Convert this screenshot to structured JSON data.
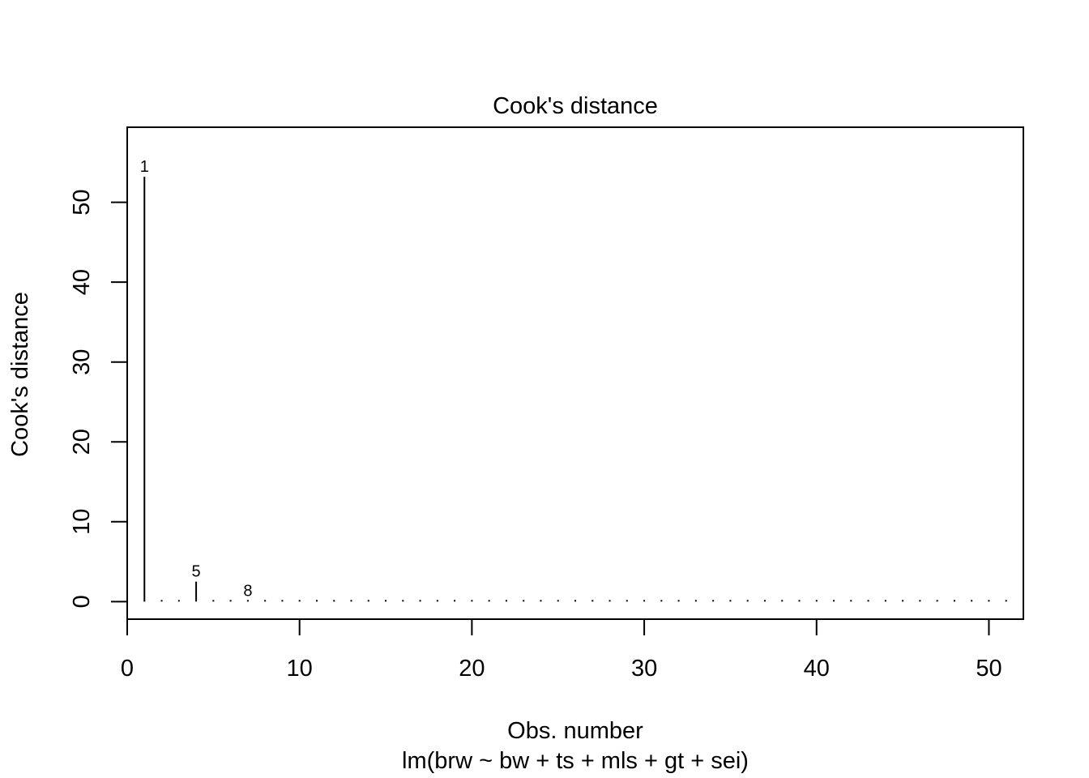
{
  "chart_data": {
    "type": "bar",
    "title": "Cook's distance",
    "xlabel": "Obs. number",
    "subtitle": "lm(brw ~ bw + ts + mls + gt + sei)",
    "ylabel": "Cook's distance",
    "xlim": [
      0,
      52
    ],
    "ylim": [
      -2.2,
      59.4
    ],
    "xticks": [
      0,
      10,
      20,
      30,
      40,
      50
    ],
    "yticks": [
      0,
      10,
      20,
      30,
      40,
      50
    ],
    "grid": false,
    "x": [
      1,
      2,
      3,
      4,
      5,
      6,
      7,
      8,
      9,
      10,
      11,
      12,
      13,
      14,
      15,
      16,
      17,
      18,
      19,
      20,
      21,
      22,
      23,
      24,
      25,
      26,
      27,
      28,
      29,
      30,
      31,
      32,
      33,
      34,
      35,
      36,
      37,
      38,
      39,
      40,
      41,
      42,
      43,
      44,
      45,
      46,
      47,
      48,
      49,
      50,
      51
    ],
    "values": [
      53.2,
      0.02,
      0.03,
      2.5,
      0.03,
      0.05,
      0.1,
      0.03,
      0.02,
      0.02,
      0.02,
      0.03,
      0.02,
      0.06,
      0.02,
      0.02,
      0.02,
      0.02,
      0.03,
      0.02,
      0.02,
      0.02,
      0.02,
      0.02,
      0.02,
      0.02,
      0.02,
      0.02,
      0.02,
      0.02,
      0.02,
      0.02,
      0.02,
      0.02,
      0.02,
      0.02,
      0.02,
      0.02,
      0.02,
      0.02,
      0.02,
      0.02,
      0.02,
      0.02,
      0.02,
      0.02,
      0.02,
      0.02,
      0.02,
      0.02,
      0.02
    ],
    "labeled_points": [
      {
        "x": 1,
        "label": "1"
      },
      {
        "x": 4,
        "label": "5"
      },
      {
        "x": 7,
        "label": "8"
      }
    ]
  }
}
